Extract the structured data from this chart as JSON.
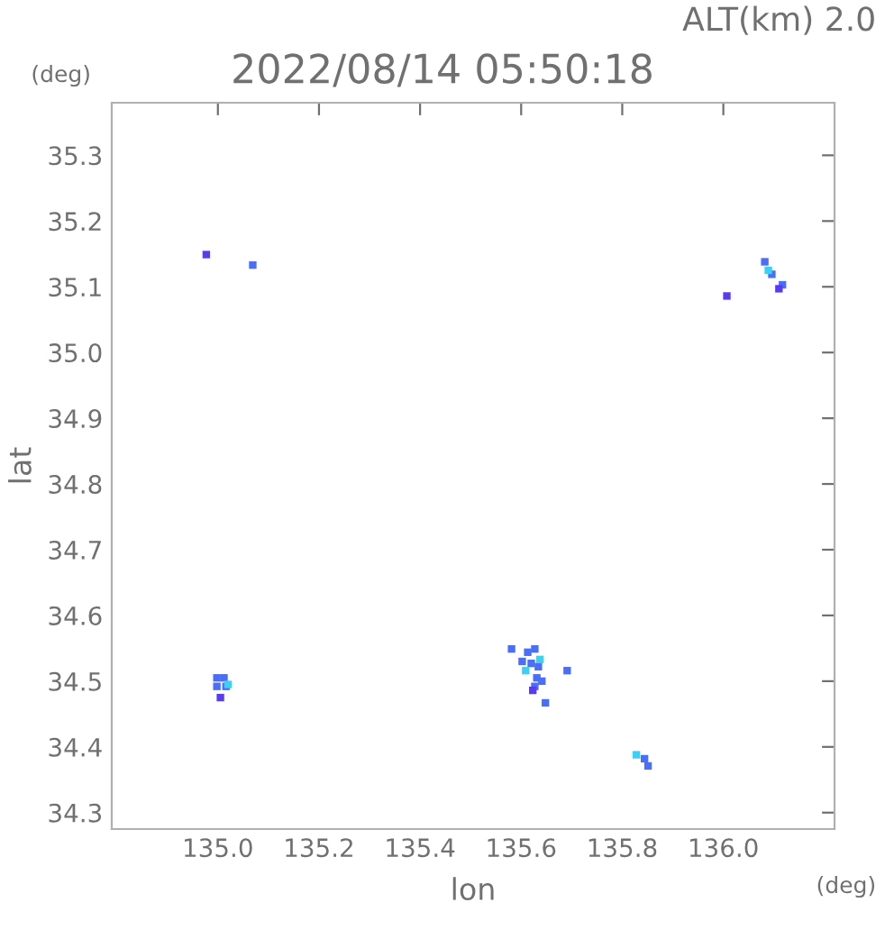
{
  "chart_data": {
    "type": "scatter",
    "title": "2022/08/14 05:50:18",
    "subtitle": "ALT(km) 2.0",
    "xlabel": "lon",
    "ylabel": "lat",
    "annotations": [
      "(deg)",
      "(deg)"
    ],
    "marker": "square",
    "grid": false,
    "xlim": [
      134.79,
      136.22
    ],
    "ylim": [
      34.275,
      35.38
    ],
    "xticks": [
      {
        "value": 135.0,
        "label": "135.0"
      },
      {
        "value": 135.2,
        "label": "135.2"
      },
      {
        "value": 135.4,
        "label": "135.4"
      },
      {
        "value": 135.6,
        "label": "135.6"
      },
      {
        "value": 135.8,
        "label": "135.8"
      },
      {
        "value": 136.0,
        "label": "136.0"
      }
    ],
    "yticks": [
      {
        "value": 34.3,
        "label": "34.3"
      },
      {
        "value": 34.4,
        "label": "34.4"
      },
      {
        "value": 34.5,
        "label": "34.5"
      },
      {
        "value": 34.6,
        "label": "34.6"
      },
      {
        "value": 34.7,
        "label": "34.7"
      },
      {
        "value": 34.8,
        "label": "34.8"
      },
      {
        "value": 34.9,
        "label": "34.9"
      },
      {
        "value": 35.0,
        "label": "35.0"
      },
      {
        "value": 35.1,
        "label": "35.1"
      },
      {
        "value": 35.2,
        "label": "35.2"
      },
      {
        "value": 35.3,
        "label": "35.3"
      }
    ],
    "series": [
      {
        "color": "#4a6ef5",
        "x": [
          135.069,
          134.998,
          135.012,
          134.998,
          135.016,
          135.581,
          135.613,
          135.627,
          135.602,
          135.62,
          135.634,
          135.631,
          135.641,
          135.627,
          135.648,
          135.691,
          135.844,
          135.851,
          136.082,
          136.096,
          136.117
        ],
        "values": [
          35.133,
          34.505,
          34.505,
          34.492,
          34.492,
          34.549,
          34.544,
          34.549,
          34.53,
          34.527,
          34.522,
          34.505,
          34.5,
          34.492,
          34.467,
          34.516,
          34.382,
          34.371,
          35.138,
          35.119,
          35.103
        ]
      },
      {
        "color": "#3cd0f5",
        "x": [
          135.02,
          135.609,
          135.637,
          136.089,
          135.828
        ],
        "values": [
          34.495,
          34.516,
          34.533,
          35.125,
          34.388
        ]
      },
      {
        "color": "#5a3cf0",
        "x": [
          134.977,
          135.623,
          135.005,
          136.11,
          136.007
        ],
        "values": [
          35.149,
          34.486,
          34.475,
          35.097,
          35.086
        ]
      }
    ]
  }
}
